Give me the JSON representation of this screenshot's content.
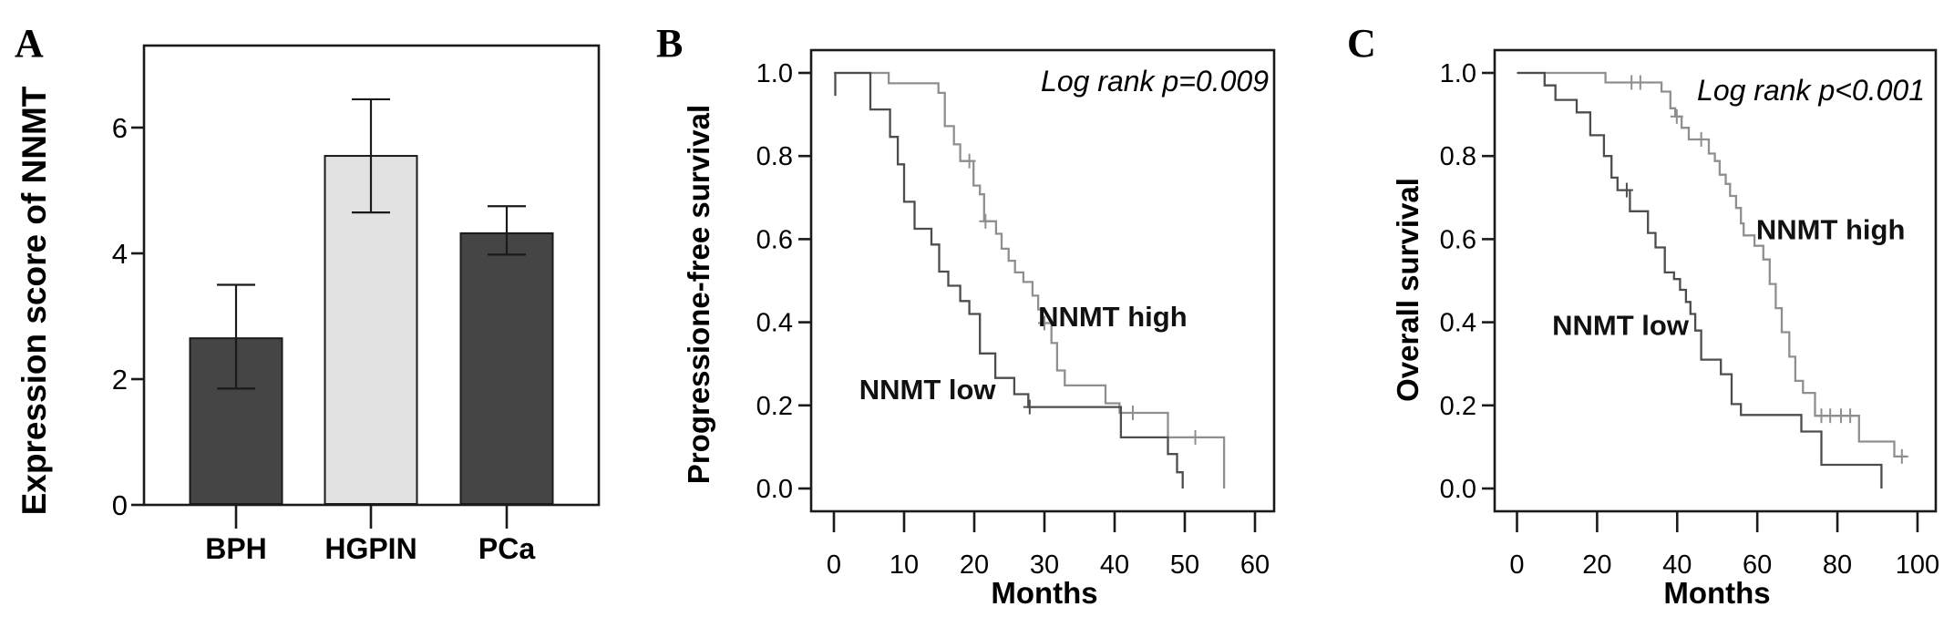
{
  "figure": {
    "background": "#ffffff",
    "axis_color": "#1a1a1a",
    "text_color": "#000000"
  },
  "chart_data": [
    {
      "type": "bar",
      "panel_label": "A",
      "title": "",
      "xlabel": "",
      "ylabel": "Expression score of NNMT",
      "categories": [
        "BPH",
        "HGPIN",
        "PCa"
      ],
      "values": [
        2.65,
        5.55,
        4.32
      ],
      "error_low": [
        1.85,
        4.65,
        3.98
      ],
      "error_high": [
        3.5,
        6.45,
        4.75
      ],
      "ytick_labels": [
        "0",
        "2",
        "4",
        "6"
      ],
      "ytick_values": [
        0,
        2,
        4,
        6
      ],
      "ylim": [
        0,
        7.3
      ],
      "grid": false,
      "bar_colors": [
        "#454545",
        "#e2e2e2",
        "#454545"
      ]
    },
    {
      "type": "line",
      "subtype": "kaplan-meier-step",
      "panel_label": "B",
      "title": "",
      "ylabel": "Progressione-free survival",
      "xlabel": "Months",
      "annotation": "Log rank p=0.009",
      "xtick_values": [
        0,
        10,
        20,
        30,
        40,
        50,
        60
      ],
      "ytick_labels": [
        "1.0",
        "0.8",
        "0.6",
        "0.4",
        "0.2",
        "0.0"
      ],
      "ytick_values": [
        1.0,
        0.8,
        0.6,
        0.4,
        0.2,
        0.0
      ],
      "xlim": [
        0,
        63
      ],
      "ylim": [
        0,
        1.05
      ],
      "grid": false,
      "legend_position": "inline-labels",
      "series": [
        {
          "name": "NNMT high",
          "color": "#8f8f8f",
          "label_pos": [
            29.1,
            0.39
          ],
          "points": [
            [
              0,
              1.0
            ],
            [
              7.8,
              0.975
            ],
            [
              14.9,
              0.952
            ],
            [
              15.8,
              0.872
            ],
            [
              17.1,
              0.828
            ],
            [
              18,
              0.788
            ],
            [
              19.9,
              0.729
            ],
            [
              20.8,
              0.708
            ],
            [
              21.4,
              0.643
            ],
            [
              23.1,
              0.613
            ],
            [
              23.9,
              0.577
            ],
            [
              24.9,
              0.548
            ],
            [
              25.8,
              0.52
            ],
            [
              27,
              0.497
            ],
            [
              28.3,
              0.464
            ],
            [
              29.1,
              0.431
            ],
            [
              29.6,
              0.398
            ],
            [
              31,
              0.35
            ],
            [
              31.8,
              0.284
            ],
            [
              32.9,
              0.248
            ],
            [
              38.7,
              0.205
            ],
            [
              40.7,
              0.182
            ],
            [
              47.6,
              0.123
            ],
            [
              55.6,
              0.0
            ]
          ],
          "censor_marks": [
            [
              19.3,
              0.788
            ],
            [
              21.6,
              0.643
            ],
            [
              30,
              0.398
            ],
            [
              42.6,
              0.182
            ],
            [
              51.5,
              0.123
            ]
          ]
        },
        {
          "name": "NNMT low",
          "color": "#4d4d4d",
          "label_pos": [
            3.6,
            0.215
          ],
          "points": [
            [
              0.2,
              0.945
            ],
            [
              0.2,
              1.0
            ],
            [
              5.2,
              0.912
            ],
            [
              8,
              0.846
            ],
            [
              9.1,
              0.78
            ],
            [
              10,
              0.69
            ],
            [
              11.5,
              0.625
            ],
            [
              13.9,
              0.587
            ],
            [
              15,
              0.522
            ],
            [
              16.3,
              0.488
            ],
            [
              18,
              0.451
            ],
            [
              19.3,
              0.42
            ],
            [
              20.8,
              0.325
            ],
            [
              23,
              0.266
            ],
            [
              25.7,
              0.227
            ],
            [
              27.7,
              0.196
            ],
            [
              40.9,
              0.123
            ],
            [
              47.6,
              0.083
            ],
            [
              48.9,
              0.039
            ],
            [
              49.7,
              0.0
            ]
          ],
          "censor_marks": [
            [
              27.9,
              0.196
            ]
          ]
        }
      ]
    },
    {
      "type": "line",
      "subtype": "kaplan-meier-step",
      "panel_label": "C",
      "title": "",
      "ylabel": "Overall survival",
      "xlabel": "Months",
      "annotation": "Log rank p<0.001",
      "xtick_values": [
        0,
        20,
        40,
        60,
        80,
        100
      ],
      "ytick_labels": [
        "1.0",
        "0.8",
        "0.6",
        "0.4",
        "0.2",
        "0.0"
      ],
      "ytick_values": [
        1.0,
        0.8,
        0.6,
        0.4,
        0.2,
        0.0
      ],
      "xlim": [
        0,
        104
      ],
      "ylim": [
        0,
        1.05
      ],
      "grid": false,
      "legend_position": "inline-labels",
      "series": [
        {
          "name": "NNMT high",
          "color": "#8f8f8f",
          "label_pos": [
            59.7,
            0.6
          ],
          "points": [
            [
              0,
              1.0
            ],
            [
              22.1,
              0.977
            ],
            [
              36.1,
              0.955
            ],
            [
              38.3,
              0.915
            ],
            [
              39.5,
              0.895
            ],
            [
              41.1,
              0.868
            ],
            [
              42.9,
              0.84
            ],
            [
              47.9,
              0.806
            ],
            [
              49.4,
              0.788
            ],
            [
              50.6,
              0.755
            ],
            [
              52.1,
              0.733
            ],
            [
              53.2,
              0.704
            ],
            [
              54.7,
              0.675
            ],
            [
              55.9,
              0.638
            ],
            [
              56.6,
              0.609
            ],
            [
              59.3,
              0.584
            ],
            [
              61.5,
              0.551
            ],
            [
              63.1,
              0.492
            ],
            [
              64.6,
              0.434
            ],
            [
              66.1,
              0.376
            ],
            [
              68,
              0.317
            ],
            [
              69.5,
              0.259
            ],
            [
              71.4,
              0.23
            ],
            [
              74.4,
              0.175
            ],
            [
              85.4,
              0.113
            ],
            [
              94.2,
              0.077
            ],
            [
              97.3,
              0.077
            ]
          ],
          "censor_marks": [
            [
              28.6,
              0.977
            ],
            [
              30.8,
              0.977
            ],
            [
              39.9,
              0.895
            ],
            [
              46,
              0.84
            ],
            [
              76,
              0.175
            ],
            [
              78.2,
              0.175
            ],
            [
              80.9,
              0.175
            ],
            [
              83.2,
              0.175
            ],
            [
              96.1,
              0.077
            ]
          ]
        },
        {
          "name": "NNMT low",
          "color": "#4d4d4d",
          "label_pos": [
            8.8,
            0.37
          ],
          "points": [
            [
              0,
              1.0
            ],
            [
              6.9,
              0.97
            ],
            [
              9.6,
              0.935
            ],
            [
              14.9,
              0.905
            ],
            [
              18.3,
              0.85
            ],
            [
              21.7,
              0.8
            ],
            [
              23.6,
              0.748
            ],
            [
              25.1,
              0.718
            ],
            [
              28.2,
              0.667
            ],
            [
              32.7,
              0.615
            ],
            [
              34.6,
              0.58
            ],
            [
              36.9,
              0.52
            ],
            [
              39.2,
              0.504
            ],
            [
              40.7,
              0.478
            ],
            [
              42.2,
              0.449
            ],
            [
              43.3,
              0.42
            ],
            [
              44.5,
              0.38
            ],
            [
              46,
              0.31
            ],
            [
              50.9,
              0.275
            ],
            [
              53.6,
              0.203
            ],
            [
              55.9,
              0.177
            ],
            [
              71,
              0.137
            ],
            [
              76,
              0.057
            ],
            [
              91,
              0.0
            ]
          ],
          "censor_marks": [
            [
              27.4,
              0.718
            ]
          ]
        }
      ]
    }
  ]
}
